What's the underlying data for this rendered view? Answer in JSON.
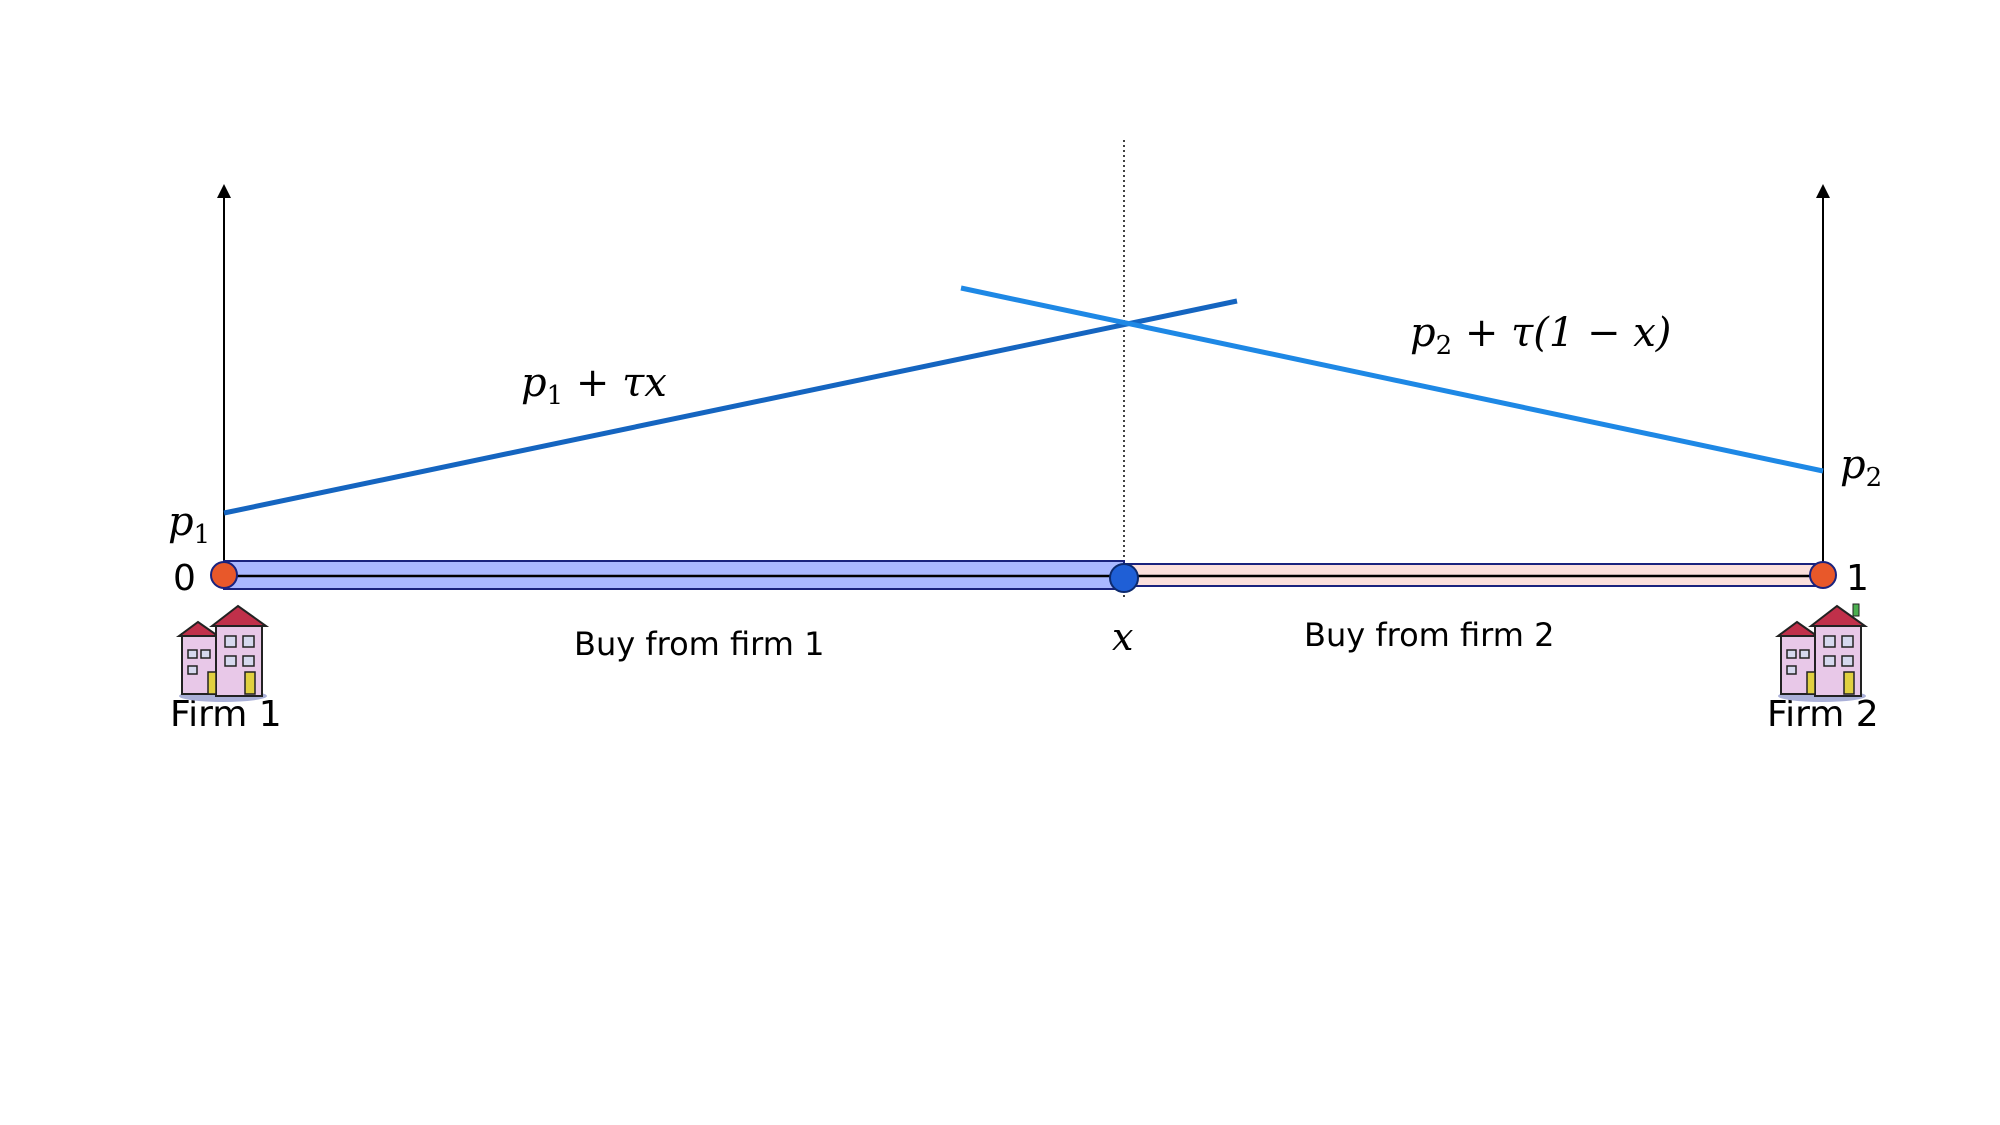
{
  "diagram": {
    "colors": {
      "line_firm1": "#1565c0",
      "line_firm2": "#1e88e5",
      "segment_firm1": "#aab8ff",
      "segment_firm2": "#fbe0dc",
      "endpoint_fill": "#e8582a",
      "marginal_point_fill": "#1f5fd6",
      "axis": "#000000"
    },
    "labels": {
      "p1": "p",
      "p1_sub": "1",
      "p2": "p",
      "p2_sub": "2",
      "line1_label_p": "p",
      "line1_label_sub": "1",
      "line1_label_rest": " + τx",
      "line2_label_p": "p",
      "line2_label_sub": "2",
      "line2_label_rest": " + τ(1 − x)",
      "zero": "0",
      "one": "1",
      "x": "x",
      "buy_firm1": "Buy from firm 1",
      "buy_firm2": "Buy from firm 2",
      "firm1": "Firm 1",
      "firm2": "Firm 2"
    },
    "icons": {
      "firm1": "building-icon",
      "firm2": "building-icon"
    }
  }
}
